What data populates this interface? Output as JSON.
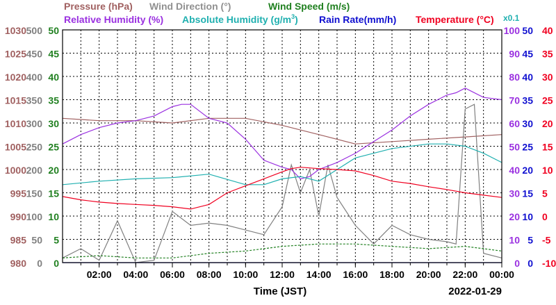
{
  "legend": {
    "row1": [
      {
        "label": "Pressure (hPa)",
        "color": "#a06060"
      },
      {
        "label": "Wind Direction (°)",
        "color": "#909090"
      },
      {
        "label": "Wind Speed (m/s)",
        "color": "#208020"
      }
    ],
    "row2": [
      {
        "label": "Relative Humidity (%)",
        "color": "#9a30e0"
      },
      {
        "label": "Absolute Humidity (g/m",
        "sup": "3",
        "close": ")",
        "color": "#20b0b0"
      },
      {
        "label": "Rain Rate(mm/h)",
        "color": "#1010d0"
      },
      {
        "label": "Temperature (°C)",
        "color": "#f00020"
      }
    ],
    "multiplier": "x0.1"
  },
  "xlabel": "Time (JST)",
  "date": "2022-01-29",
  "chart_data": {
    "type": "line",
    "x_unit": "hour of day (JST)",
    "x_range": [
      0,
      24
    ],
    "x_ticks": [
      "02:00",
      "04:00",
      "06:00",
      "08:00",
      "10:00",
      "12:00",
      "14:00",
      "16:00",
      "18:00",
      "20:00",
      "22:00",
      "00:00"
    ],
    "axes": {
      "pressure": {
        "ticks": [
          "1030",
          "1025",
          "1020",
          "1015",
          "1010",
          "1005",
          "1000",
          "995",
          "990",
          "985",
          "980"
        ],
        "range": [
          980,
          1030
        ],
        "color": "#a06060"
      },
      "wind_direction": {
        "ticks": [
          "500",
          "450",
          "400",
          "350",
          "300",
          "250",
          "200",
          "150",
          "100",
          "50",
          "0"
        ],
        "range": [
          0,
          500
        ],
        "color": "#808080"
      },
      "wind_speed": {
        "ticks": [
          "50",
          "45",
          "40",
          "35",
          "30",
          "25",
          "20",
          "15",
          "10",
          "5",
          "0"
        ],
        "range": [
          0,
          50
        ],
        "color": "#208020"
      },
      "relative_humidity": {
        "ticks": [
          "100",
          "90",
          "80",
          "70",
          "60",
          "50",
          "40",
          "30",
          "20",
          "10",
          "0"
        ],
        "range": [
          0,
          100
        ],
        "color": "#9a30e0"
      },
      "rain_rate": {
        "ticks": [
          "50",
          "45",
          "40",
          "35",
          "30",
          "25",
          "20",
          "15",
          "10",
          "5",
          "0"
        ],
        "range": [
          0,
          50
        ],
        "color": "#1010d0"
      },
      "temperature": {
        "ticks": [
          "40",
          "35",
          "30",
          "25",
          "20",
          "15",
          "10",
          "5",
          "0",
          "-5",
          "-10"
        ],
        "range": [
          -10,
          40
        ],
        "color": "#f00020"
      }
    },
    "grid": true,
    "series": [
      {
        "name": "Pressure (hPa)",
        "axis": "pressure",
        "color": "#a06060",
        "x": [
          0,
          2,
          4,
          6,
          8,
          10,
          12,
          14,
          16,
          18,
          20,
          22,
          24
        ],
        "y": [
          1011,
          1010.5,
          1010.5,
          1010,
          1011,
          1011,
          1009.5,
          1007.5,
          1005.5,
          1006,
          1006.5,
          1007,
          1007.5
        ]
      },
      {
        "name": "Wind Direction (°)",
        "axis": "wind_direction",
        "color": "#808080",
        "x": [
          0,
          1,
          2,
          3,
          4,
          5,
          6,
          7,
          8,
          9,
          10,
          11,
          12,
          12.5,
          13,
          13.5,
          14,
          14.5,
          15,
          16,
          17,
          18,
          19,
          20,
          21,
          21.5,
          22,
          22.5,
          23,
          24
        ],
        "y": [
          10,
          30,
          5,
          90,
          0,
          5,
          110,
          80,
          85,
          80,
          70,
          60,
          120,
          210,
          150,
          200,
          100,
          210,
          140,
          80,
          40,
          80,
          60,
          50,
          45,
          40,
          330,
          340,
          20,
          10
        ]
      },
      {
        "name": "Wind Speed (m/s)",
        "axis": "wind_speed",
        "color": "#208020",
        "x": [
          0,
          2,
          4,
          6,
          8,
          10,
          12,
          14,
          16,
          18,
          20,
          22,
          24
        ],
        "y": [
          1,
          1.5,
          1,
          1,
          2,
          2.5,
          3.5,
          4,
          4,
          3.5,
          3,
          3.5,
          2.5
        ]
      },
      {
        "name": "Relative Humidity (%)",
        "axis": "relative_humidity",
        "color": "#9a30e0",
        "x": [
          0,
          1,
          2,
          3,
          4,
          5,
          6,
          6.5,
          7,
          8,
          9,
          10,
          11,
          12,
          12.5,
          13,
          13.5,
          14,
          15,
          16,
          17,
          18,
          19,
          20,
          21,
          21.5,
          22,
          23,
          24
        ],
        "y": [
          51,
          55,
          58,
          60,
          61,
          63,
          67,
          68,
          68,
          62,
          60,
          53,
          44,
          41,
          40,
          36,
          37,
          40,
          43,
          47,
          52,
          57,
          63,
          68,
          72,
          73,
          75,
          71,
          70
        ]
      },
      {
        "name": "Absolute Humidity (g/m3)",
        "axis": "relative_humidity",
        "color": "#20b0b0",
        "x": [
          0,
          2,
          4,
          6,
          8,
          10,
          11,
          12,
          13,
          14,
          15,
          16,
          18,
          20,
          21,
          22,
          23,
          24
        ],
        "y": [
          33.5,
          35,
          36,
          36.5,
          38,
          33.5,
          33.5,
          36,
          37,
          35,
          40,
          45,
          49,
          51,
          51,
          50,
          47,
          43
        ]
      },
      {
        "name": "Rain Rate(mm/h)",
        "axis": "rain_rate",
        "color": "#1010d0",
        "x": [
          0,
          24
        ],
        "y": [
          0,
          0
        ]
      },
      {
        "name": "Temperature (°C)",
        "axis": "temperature",
        "color": "#f00020",
        "x": [
          0,
          1,
          2,
          3,
          4,
          5,
          6,
          7,
          8,
          9,
          10,
          11,
          12,
          12.5,
          13,
          14,
          15,
          16,
          17,
          18,
          19,
          20,
          21,
          22,
          23,
          24
        ],
        "y": [
          4.2,
          3.5,
          3,
          2.7,
          2.5,
          2.3,
          2,
          1.5,
          2.5,
          5,
          6.5,
          8,
          9.5,
          10.2,
          10.5,
          10.2,
          10,
          9.7,
          8.7,
          7.5,
          7,
          6.3,
          5.7,
          5,
          4.5,
          4
        ]
      }
    ]
  }
}
